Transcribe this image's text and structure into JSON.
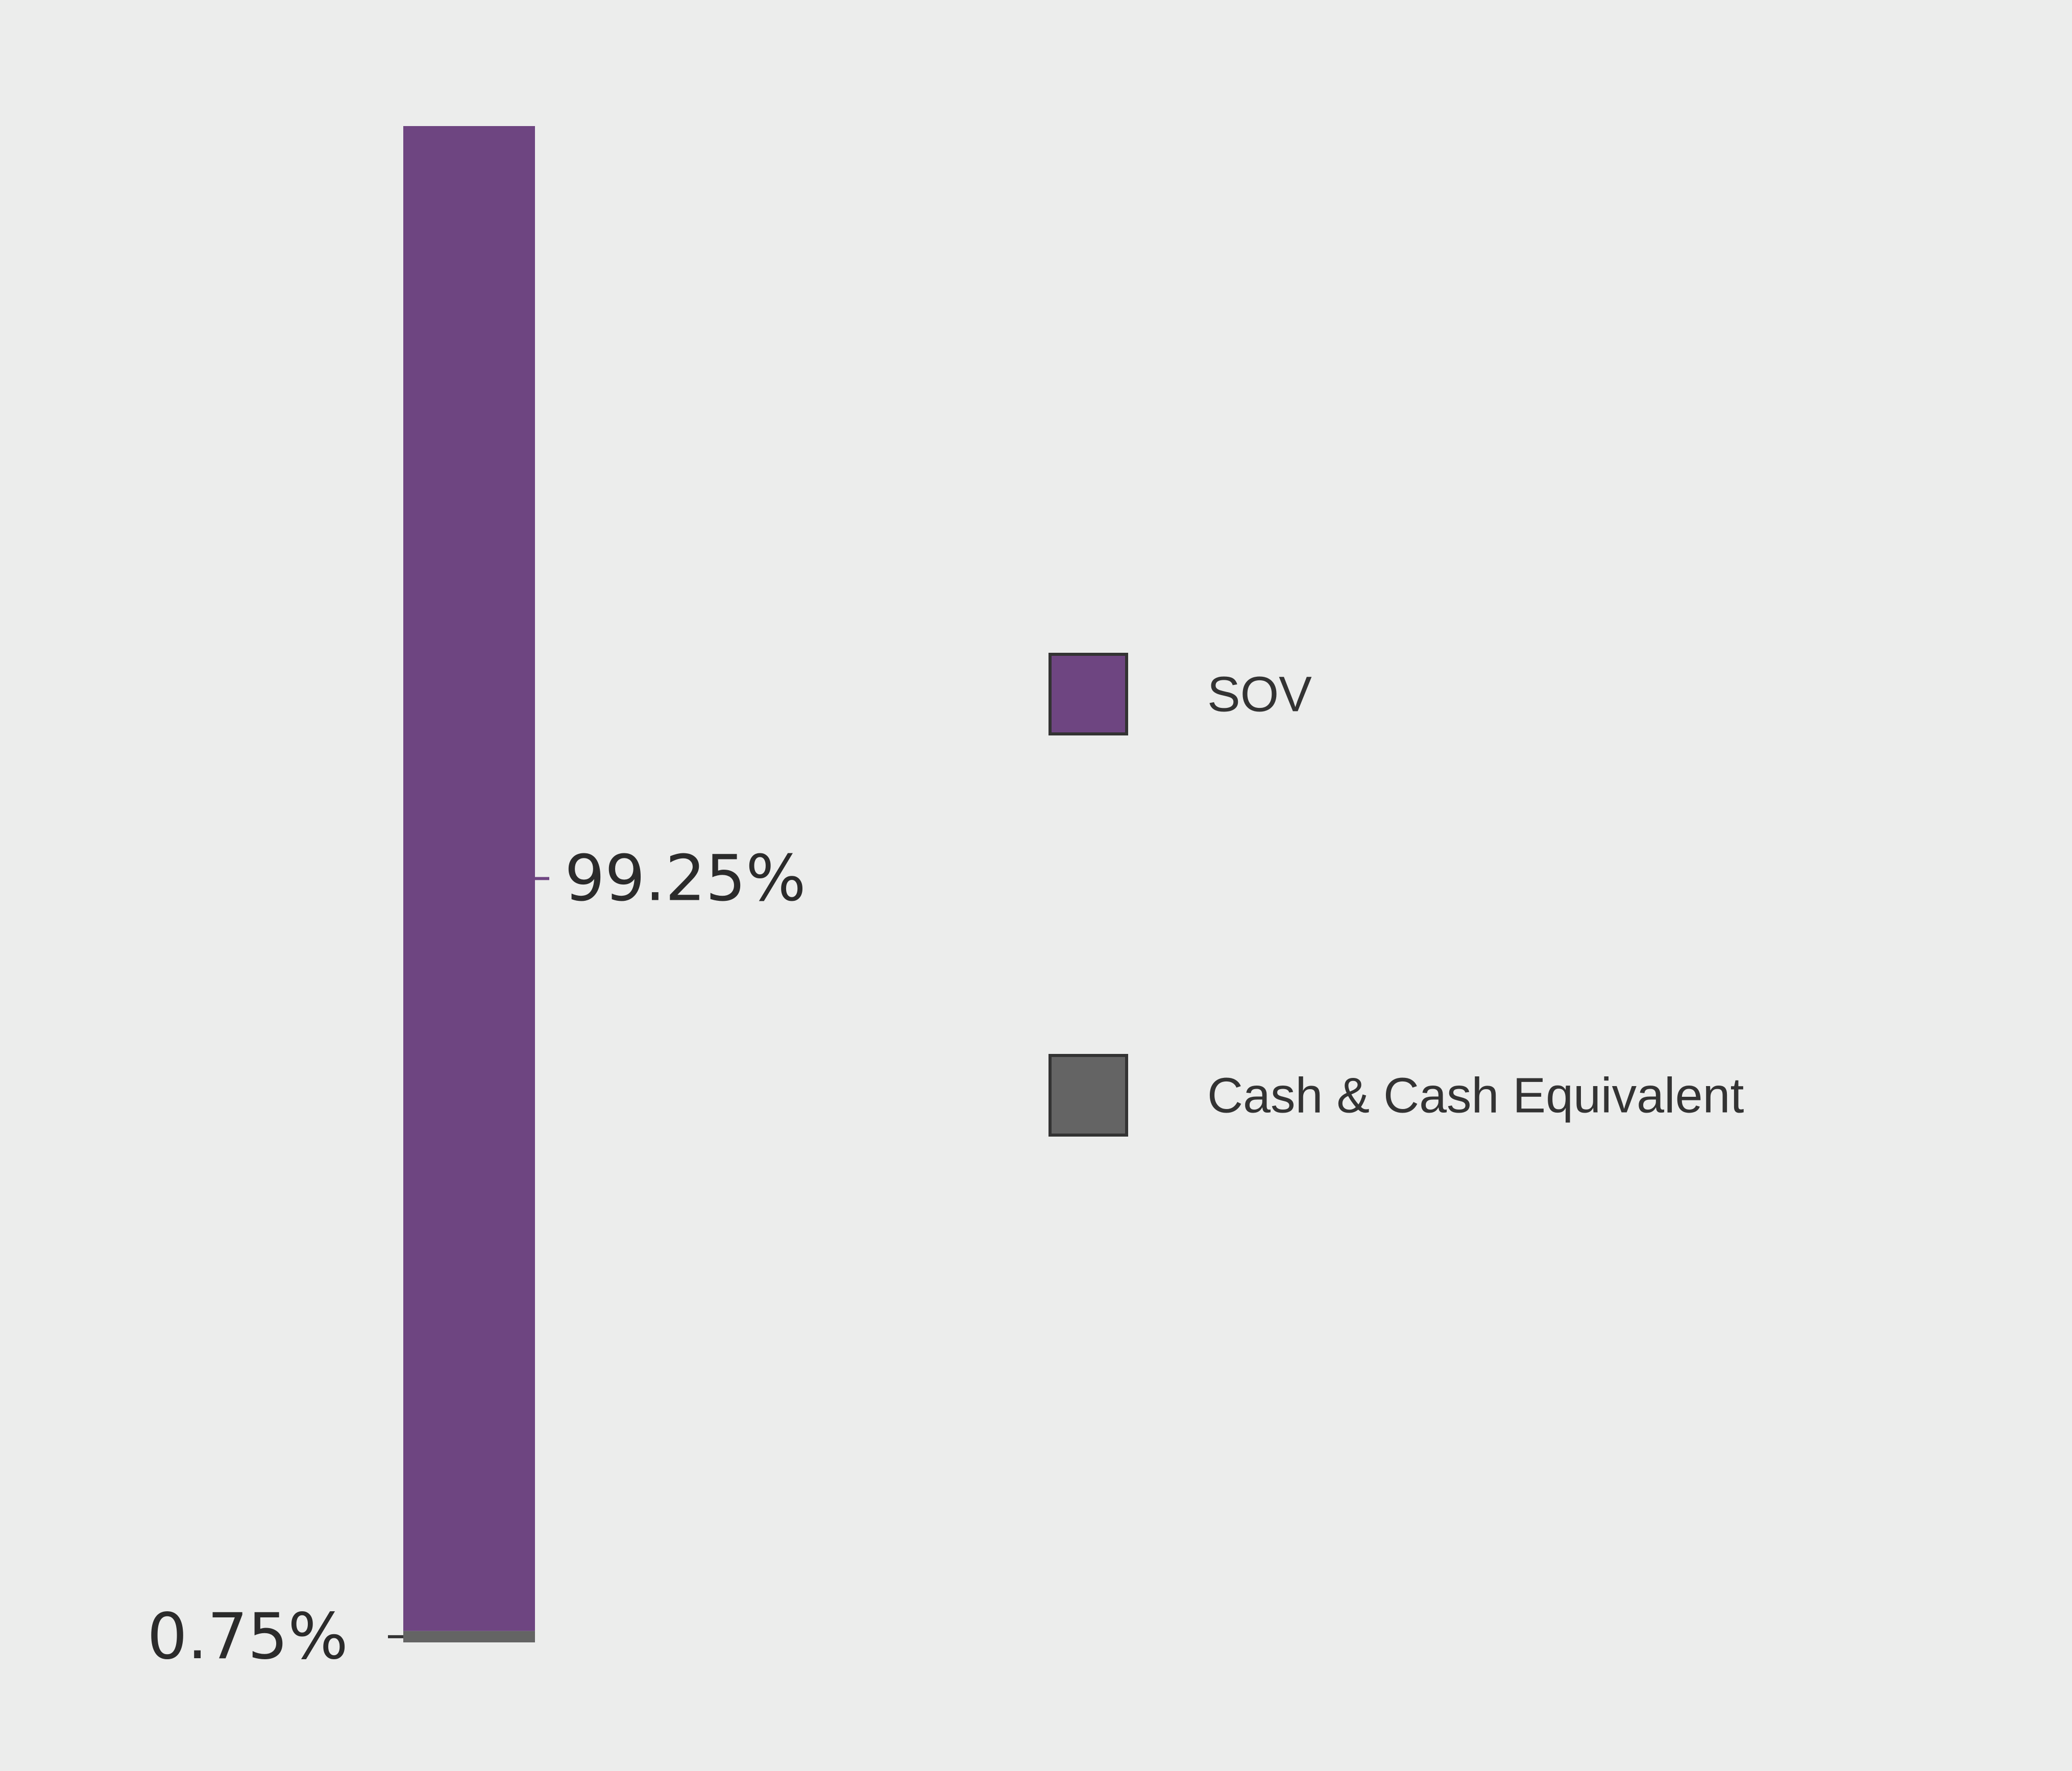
{
  "chart_data": {
    "type": "bar",
    "stacked": true,
    "orientation": "vertical",
    "categories": [
      ""
    ],
    "series": [
      {
        "name": "SOV",
        "values": [
          99.25
        ],
        "label": "99.25%",
        "color": "#6e4581",
        "label_side": "right"
      },
      {
        "name": "Cash & Cash Equivalent",
        "values": [
          0.75
        ],
        "label": "0.75%",
        "color": "#646464",
        "label_side": "left"
      }
    ],
    "title": "",
    "xlabel": "",
    "ylabel": "",
    "ylim": [
      0,
      100
    ],
    "grid": false,
    "legend": {
      "position": "right",
      "items": [
        {
          "label": "SOV",
          "color": "#6e4581"
        },
        {
          "label": "Cash & Cash Equivalent",
          "color": "#646464"
        }
      ]
    }
  },
  "colors": {
    "background": "#ecedec",
    "legend_border": "#333333",
    "label_text": "#2b2b2b"
  }
}
